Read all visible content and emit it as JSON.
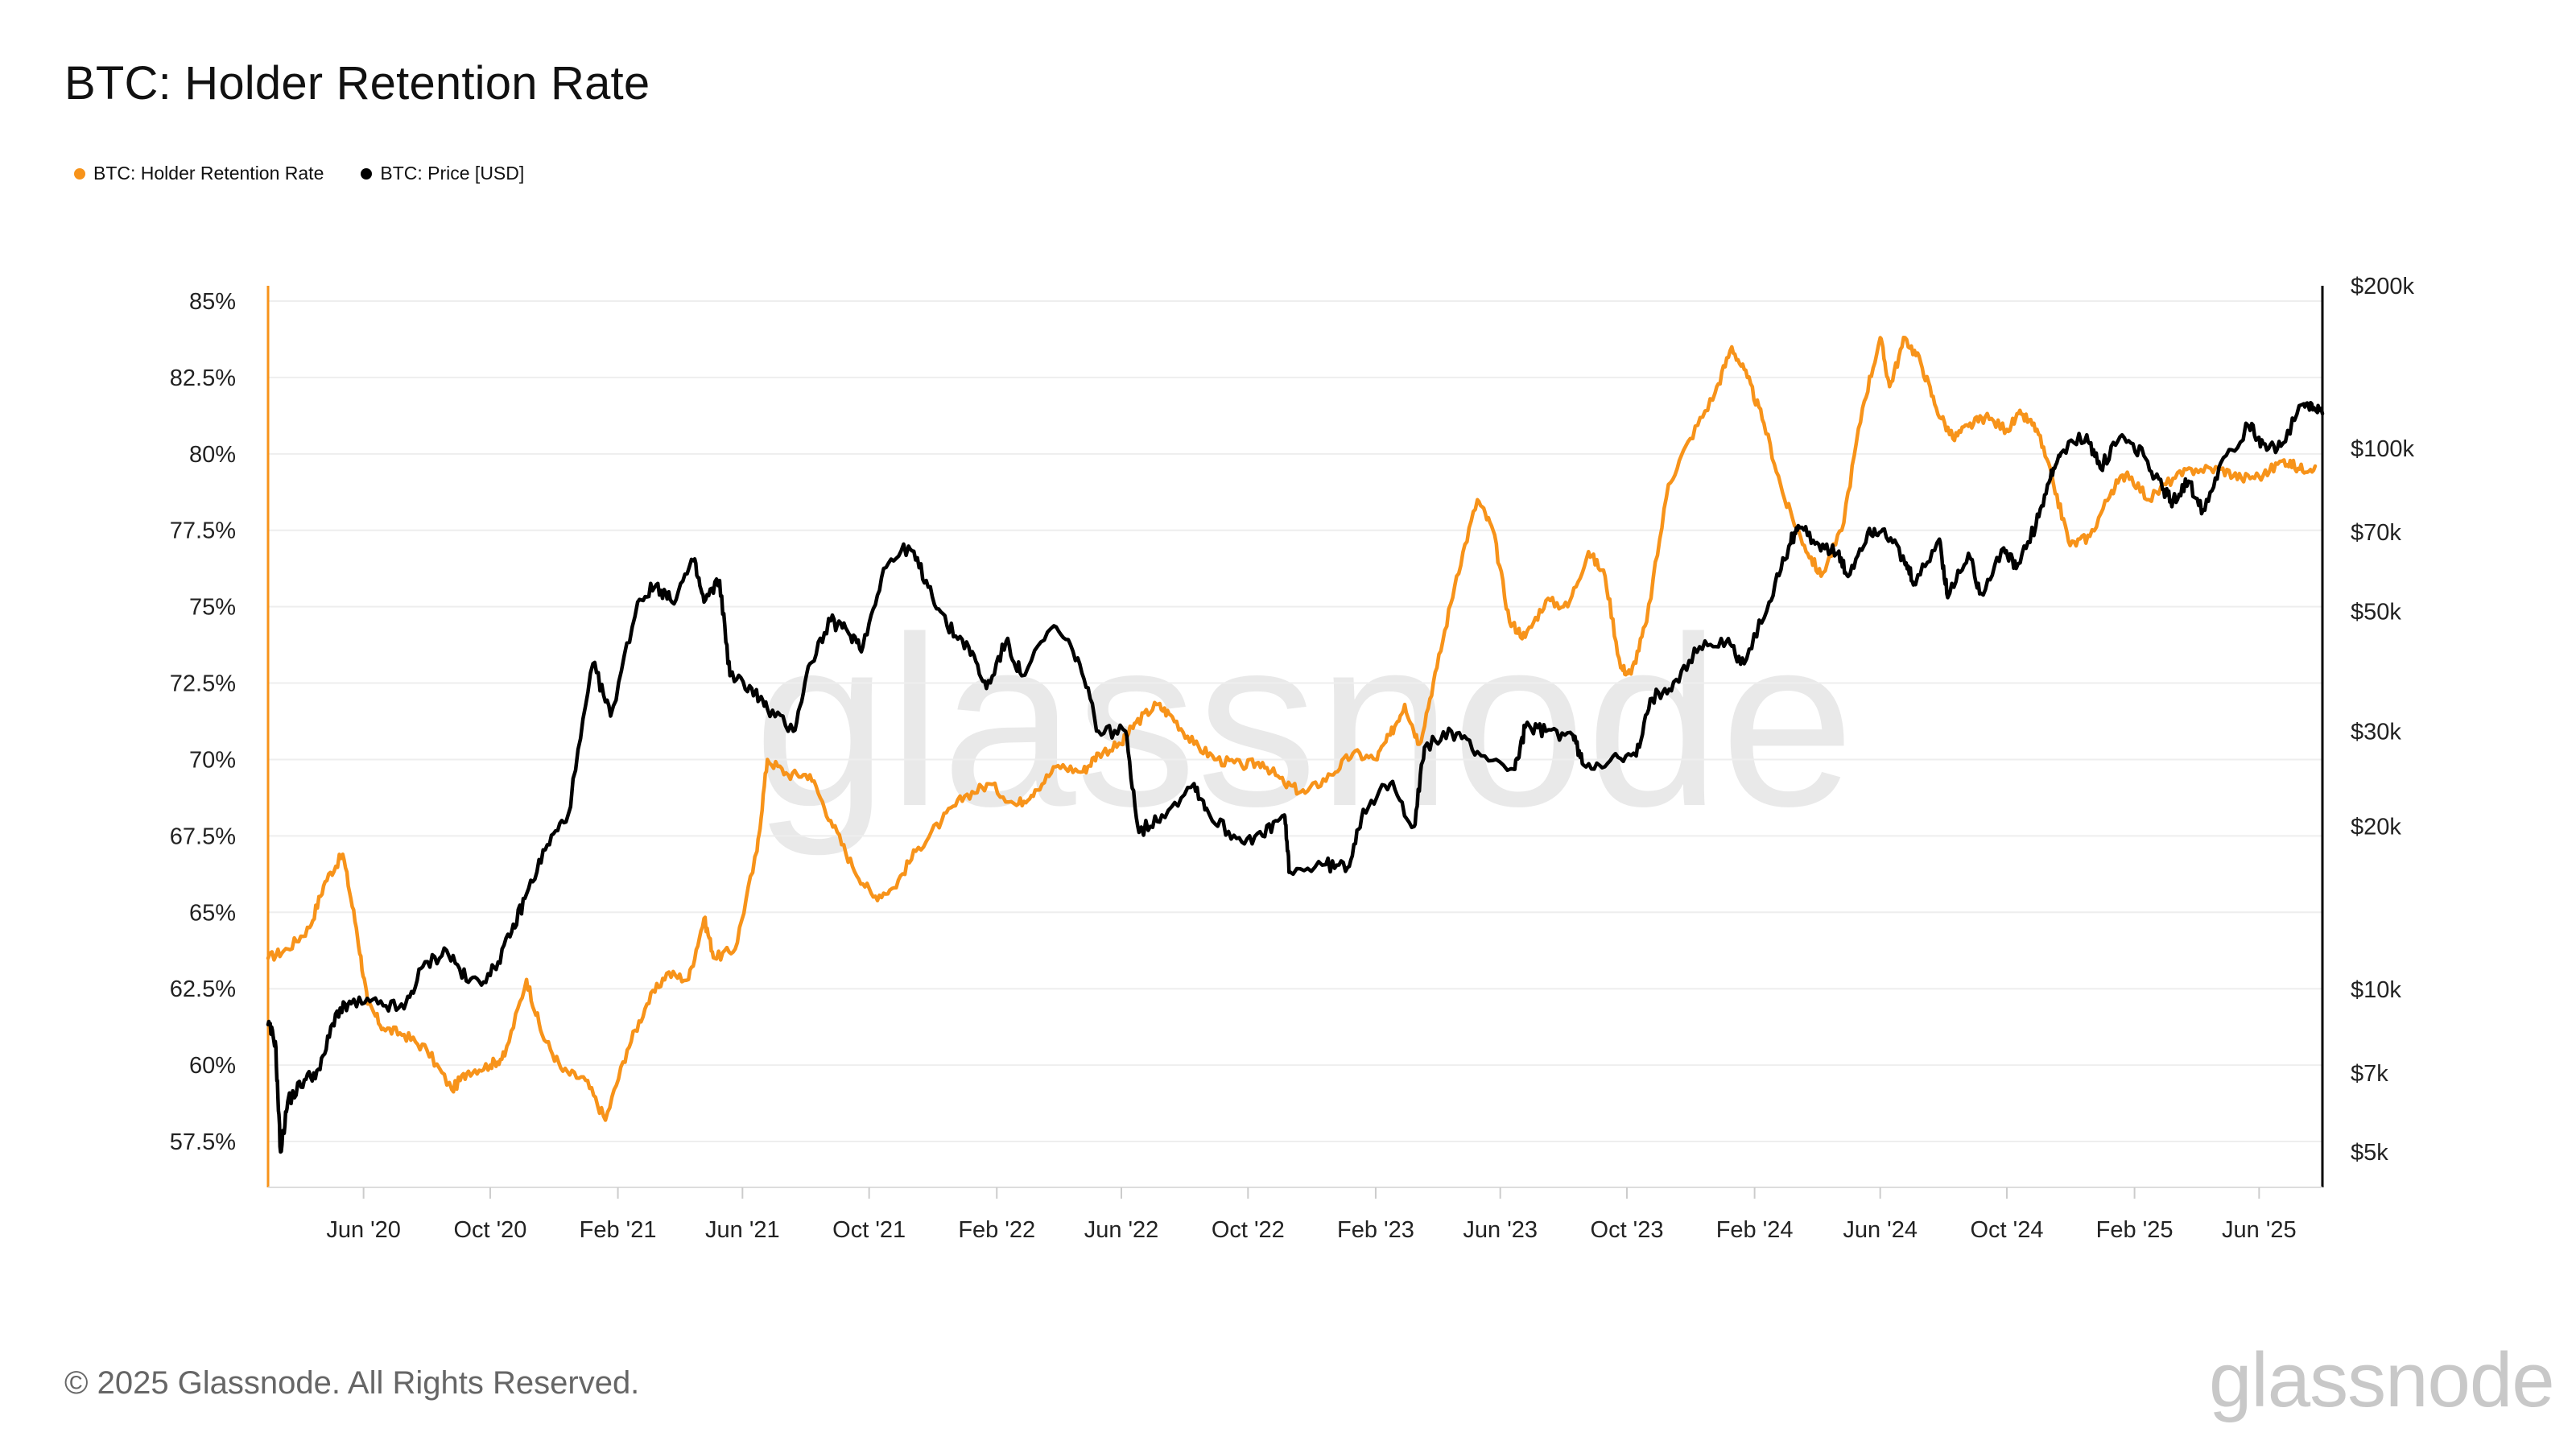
{
  "title": "BTC: Holder Retention Rate",
  "legend": [
    {
      "label": "BTC: Holder Retention Rate",
      "color": "#f7931a"
    },
    {
      "label": "BTC: Price [USD]",
      "color": "#000000"
    }
  ],
  "footer": {
    "copyright": "© 2025 Glassnode. All Rights Reserved.",
    "logo": "glassnode"
  },
  "watermark": "glassnode",
  "chart_data": {
    "type": "line",
    "title": "BTC: Holder Retention Rate",
    "x_ticks": [
      "Jun '20",
      "Oct '20",
      "Feb '21",
      "Jun '21",
      "Oct '21",
      "Feb '22",
      "Jun '22",
      "Oct '22",
      "Feb '23",
      "Jun '23",
      "Oct '23",
      "Feb '24",
      "Jun '24",
      "Oct '24",
      "Feb '25",
      "Jun '25"
    ],
    "x_range": [
      "2020-03-01",
      "2025-08-01"
    ],
    "y_left": {
      "ticks": [
        "57.5%",
        "60%",
        "62.5%",
        "65%",
        "67.5%",
        "70%",
        "72.5%",
        "75%",
        "77.5%",
        "80%",
        "82.5%",
        "85%"
      ],
      "range": [
        56,
        85.5
      ]
    },
    "y_right": {
      "scale": "log",
      "ticks": [
        "$5k",
        "$7k",
        "$10k",
        "$20k",
        "$30k",
        "$50k",
        "$70k",
        "$100k",
        "$200k"
      ],
      "range": [
        4300,
        200000
      ]
    },
    "grid": true,
    "legend_position": "top-left",
    "series": [
      {
        "name": "BTC: Holder Retention Rate",
        "axis": "left",
        "color": "#f7931a",
        "points": [
          [
            "2020-03-01",
            63.5
          ],
          [
            "2020-03-20",
            63.8
          ],
          [
            "2020-04-10",
            64.5
          ],
          [
            "2020-04-25",
            66.0
          ],
          [
            "2020-05-12",
            66.9
          ],
          [
            "2020-05-25",
            64.5
          ],
          [
            "2020-06-05",
            62.0
          ],
          [
            "2020-06-20",
            61.2
          ],
          [
            "2020-07-10",
            61.0
          ],
          [
            "2020-08-01",
            60.5
          ],
          [
            "2020-08-25",
            59.2
          ],
          [
            "2020-09-10",
            59.8
          ],
          [
            "2020-10-01",
            60.0
          ],
          [
            "2020-10-15",
            60.3
          ],
          [
            "2020-11-05",
            62.8
          ],
          [
            "2020-11-20",
            61.0
          ],
          [
            "2020-12-10",
            59.8
          ],
          [
            "2021-01-01",
            59.5
          ],
          [
            "2021-01-20",
            58.2
          ],
          [
            "2021-02-10",
            60.5
          ],
          [
            "2021-03-01",
            62.0
          ],
          [
            "2021-03-20",
            63.0
          ],
          [
            "2021-04-10",
            62.8
          ],
          [
            "2021-04-25",
            64.8
          ],
          [
            "2021-05-05",
            63.5
          ],
          [
            "2021-05-25",
            63.8
          ],
          [
            "2021-06-15",
            67.0
          ],
          [
            "2021-06-25",
            70.0
          ],
          [
            "2021-07-15",
            69.5
          ],
          [
            "2021-08-05",
            69.5
          ],
          [
            "2021-08-25",
            68.0
          ],
          [
            "2021-09-15",
            66.5
          ],
          [
            "2021-10-05",
            65.5
          ],
          [
            "2021-10-25",
            65.8
          ],
          [
            "2021-11-15",
            67.0
          ],
          [
            "2021-12-10",
            68.0
          ],
          [
            "2022-01-01",
            68.8
          ],
          [
            "2022-01-25",
            69.2
          ],
          [
            "2022-02-20",
            68.5
          ],
          [
            "2022-03-10",
            69.0
          ],
          [
            "2022-04-01",
            69.8
          ],
          [
            "2022-04-25",
            69.6
          ],
          [
            "2022-05-10",
            70.2
          ],
          [
            "2022-06-01",
            70.5
          ],
          [
            "2022-06-15",
            71.2
          ],
          [
            "2022-07-05",
            71.8
          ],
          [
            "2022-07-20",
            71.4
          ],
          [
            "2022-08-10",
            70.5
          ],
          [
            "2022-09-01",
            70.0
          ],
          [
            "2022-09-25",
            69.8
          ],
          [
            "2022-10-15",
            69.9
          ],
          [
            "2022-11-05",
            69.2
          ],
          [
            "2022-11-25",
            68.9
          ],
          [
            "2022-12-20",
            69.5
          ],
          [
            "2023-01-10",
            70.2
          ],
          [
            "2023-02-01",
            70.0
          ],
          [
            "2023-02-15",
            70.8
          ],
          [
            "2023-03-01",
            71.8
          ],
          [
            "2023-03-15",
            70.5
          ],
          [
            "2023-04-01",
            73.0
          ],
          [
            "2023-04-20",
            76.0
          ],
          [
            "2023-05-10",
            78.5
          ],
          [
            "2023-05-25",
            77.5
          ],
          [
            "2023-06-10",
            74.5
          ],
          [
            "2023-06-25",
            74.0
          ],
          [
            "2023-07-15",
            75.2
          ],
          [
            "2023-08-05",
            75.0
          ],
          [
            "2023-08-25",
            76.8
          ],
          [
            "2023-09-10",
            76.0
          ],
          [
            "2023-09-25",
            73.0
          ],
          [
            "2023-10-05",
            72.8
          ],
          [
            "2023-10-20",
            74.5
          ],
          [
            "2023-11-10",
            79.0
          ],
          [
            "2023-12-01",
            80.5
          ],
          [
            "2023-12-25",
            82.0
          ],
          [
            "2024-01-10",
            83.5
          ],
          [
            "2024-01-25",
            82.5
          ],
          [
            "2024-02-10",
            81.0
          ],
          [
            "2024-03-01",
            78.5
          ],
          [
            "2024-03-20",
            77.0
          ],
          [
            "2024-04-05",
            76.0
          ],
          [
            "2024-04-25",
            77.5
          ],
          [
            "2024-05-15",
            81.5
          ],
          [
            "2024-06-01",
            83.8
          ],
          [
            "2024-06-10",
            82.2
          ],
          [
            "2024-06-25",
            83.8
          ],
          [
            "2024-07-10",
            83.0
          ],
          [
            "2024-07-25",
            81.5
          ],
          [
            "2024-08-10",
            80.5
          ],
          [
            "2024-08-25",
            80.9
          ],
          [
            "2024-09-10",
            81.2
          ],
          [
            "2024-10-01",
            80.8
          ],
          [
            "2024-10-15",
            81.3
          ],
          [
            "2024-10-30",
            80.8
          ],
          [
            "2024-11-15",
            79.0
          ],
          [
            "2024-12-01",
            77.0
          ],
          [
            "2024-12-20",
            77.3
          ],
          [
            "2025-01-10",
            78.8
          ],
          [
            "2025-01-25",
            79.4
          ],
          [
            "2025-02-15",
            78.5
          ],
          [
            "2025-03-10",
            79.2
          ],
          [
            "2025-04-01",
            79.5
          ],
          [
            "2025-04-25",
            79.5
          ],
          [
            "2025-05-15",
            79.2
          ],
          [
            "2025-06-05",
            79.3
          ],
          [
            "2025-06-25",
            79.8
          ],
          [
            "2025-07-10",
            79.5
          ],
          [
            "2025-07-25",
            79.6
          ]
        ]
      },
      {
        "name": "BTC: Price [USD]",
        "axis": "right",
        "color": "#000000",
        "points": [
          [
            "2020-03-01",
            8600
          ],
          [
            "2020-03-08",
            8000
          ],
          [
            "2020-03-13",
            5000
          ],
          [
            "2020-03-20",
            6200
          ],
          [
            "2020-04-05",
            6800
          ],
          [
            "2020-04-20",
            7100
          ],
          [
            "2020-05-05",
            9000
          ],
          [
            "2020-05-20",
            9400
          ],
          [
            "2020-06-15",
            9400
          ],
          [
            "2020-07-10",
            9200
          ],
          [
            "2020-07-28",
            11000
          ],
          [
            "2020-08-20",
            11800
          ],
          [
            "2020-09-10",
            10300
          ],
          [
            "2020-10-01",
            10600
          ],
          [
            "2020-10-20",
            12500
          ],
          [
            "2020-11-05",
            15000
          ],
          [
            "2020-11-25",
            18500
          ],
          [
            "2020-12-15",
            21000
          ],
          [
            "2021-01-08",
            40000
          ],
          [
            "2021-01-25",
            32000
          ],
          [
            "2021-02-20",
            52000
          ],
          [
            "2021-03-10",
            56000
          ],
          [
            "2021-03-25",
            52000
          ],
          [
            "2021-04-15",
            62000
          ],
          [
            "2021-04-25",
            52000
          ],
          [
            "2021-05-10",
            57000
          ],
          [
            "2021-05-20",
            38000
          ],
          [
            "2021-06-10",
            36000
          ],
          [
            "2021-06-25",
            33000
          ],
          [
            "2021-07-20",
            30000
          ],
          [
            "2021-08-05",
            40000
          ],
          [
            "2021-08-25",
            48000
          ],
          [
            "2021-09-10",
            46000
          ],
          [
            "2021-09-25",
            43000
          ],
          [
            "2021-10-15",
            60000
          ],
          [
            "2021-11-08",
            66000
          ],
          [
            "2021-11-25",
            57000
          ],
          [
            "2021-12-15",
            47000
          ],
          [
            "2022-01-05",
            43000
          ],
          [
            "2022-01-22",
            36000
          ],
          [
            "2022-02-10",
            44000
          ],
          [
            "2022-02-25",
            38000
          ],
          [
            "2022-03-28",
            47000
          ],
          [
            "2022-04-20",
            41000
          ],
          [
            "2022-05-10",
            30000
          ],
          [
            "2022-06-05",
            30000
          ],
          [
            "2022-06-18",
            19500
          ],
          [
            "2022-07-10",
            21000
          ],
          [
            "2022-08-10",
            24000
          ],
          [
            "2022-08-25",
            21000
          ],
          [
            "2022-09-20",
            19000
          ],
          [
            "2022-10-15",
            19200
          ],
          [
            "2022-11-05",
            21000
          ],
          [
            "2022-11-10",
            16500
          ],
          [
            "2022-12-15",
            17000
          ],
          [
            "2023-01-05",
            16800
          ],
          [
            "2023-01-20",
            21500
          ],
          [
            "2023-02-15",
            24000
          ],
          [
            "2023-03-10",
            20000
          ],
          [
            "2023-03-20",
            28000
          ],
          [
            "2023-04-15",
            30000
          ],
          [
            "2023-05-10",
            27500
          ],
          [
            "2023-06-15",
            25500
          ],
          [
            "2023-06-25",
            30500
          ],
          [
            "2023-07-15",
            30000
          ],
          [
            "2023-08-10",
            29500
          ],
          [
            "2023-08-20",
            26000
          ],
          [
            "2023-09-15",
            26500
          ],
          [
            "2023-10-10",
            27000
          ],
          [
            "2023-10-25",
            34500
          ],
          [
            "2023-11-15",
            37000
          ],
          [
            "2023-12-10",
            43000
          ],
          [
            "2024-01-05",
            44000
          ],
          [
            "2024-01-22",
            40000
          ],
          [
            "2024-02-15",
            52000
          ],
          [
            "2024-03-05",
            66000
          ],
          [
            "2024-03-14",
            72000
          ],
          [
            "2024-04-01",
            67000
          ],
          [
            "2024-04-20",
            64000
          ],
          [
            "2024-05-01",
            58000
          ],
          [
            "2024-05-20",
            70000
          ],
          [
            "2024-06-05",
            71000
          ],
          [
            "2024-06-25",
            61000
          ],
          [
            "2024-07-05",
            56000
          ],
          [
            "2024-07-28",
            68000
          ],
          [
            "2024-08-05",
            53000
          ],
          [
            "2024-08-25",
            64000
          ],
          [
            "2024-09-06",
            54000
          ],
          [
            "2024-09-28",
            65500
          ],
          [
            "2024-10-10",
            60000
          ],
          [
            "2024-10-29",
            72000
          ],
          [
            "2024-11-12",
            88000
          ],
          [
            "2024-11-22",
            98000
          ],
          [
            "2024-12-17",
            106000
          ],
          [
            "2024-12-30",
            92000
          ],
          [
            "2025-01-20",
            106000
          ],
          [
            "2025-02-10",
            97000
          ],
          [
            "2025-02-28",
            84000
          ],
          [
            "2025-03-10",
            80000
          ],
          [
            "2025-03-25",
            87000
          ],
          [
            "2025-04-08",
            77000
          ],
          [
            "2025-04-25",
            94000
          ],
          [
            "2025-05-22",
            110000
          ],
          [
            "2025-06-05",
            102000
          ],
          [
            "2025-06-22",
            101000
          ],
          [
            "2025-07-14",
            121000
          ],
          [
            "2025-07-25",
            118000
          ],
          [
            "2025-08-01",
            116000
          ]
        ]
      }
    ]
  }
}
